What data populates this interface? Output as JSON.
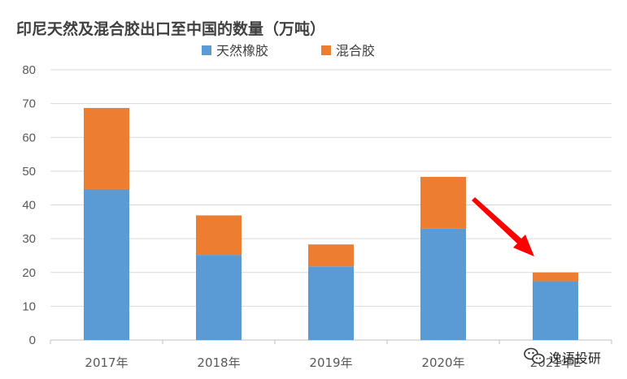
{
  "chart_data": {
    "type": "bar",
    "stacked": true,
    "title": "印尼天然及混合胶出口至中国的数量（万吨）",
    "categories": [
      "2017年",
      "2018年",
      "2019年",
      "2020年",
      "2021年E"
    ],
    "series": [
      {
        "name": "天然橡胶",
        "values": [
          44.7,
          25.2,
          21.8,
          33.0,
          17.4
        ],
        "color": "#5b9bd5"
      },
      {
        "name": "混合胶",
        "values": [
          24.0,
          11.7,
          6.5,
          15.3,
          2.6
        ],
        "color": "#ed7d31"
      }
    ],
    "ylim": [
      0,
      80
    ],
    "yticks": [
      0,
      10,
      20,
      30,
      40,
      50,
      60,
      70,
      80
    ],
    "grid": true,
    "legend": "top",
    "annotation_arrow_color": "#ff0000"
  },
  "watermark": {
    "text": "逸语投研"
  }
}
